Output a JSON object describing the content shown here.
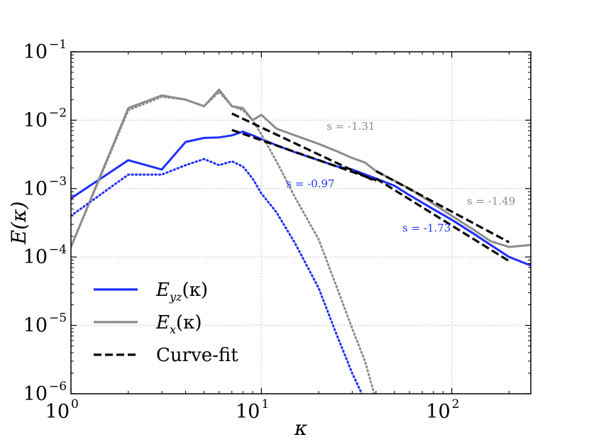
{
  "chart_data": {
    "type": "line",
    "xscale": "log",
    "yscale": "log",
    "xlim": [
      1,
      260
    ],
    "ylim": [
      1e-06,
      0.1
    ],
    "xlabel": "κ",
    "ylabel": "E(κ)",
    "x_ticks": [
      {
        "value": 1,
        "base": "10",
        "exp": "0"
      },
      {
        "value": 10,
        "base": "10",
        "exp": "1"
      },
      {
        "value": 100,
        "base": "10",
        "exp": "2"
      }
    ],
    "y_ticks": [
      {
        "value": 1e-06,
        "base": "10",
        "exp": "−6"
      },
      {
        "value": 1e-05,
        "base": "10",
        "exp": "−5"
      },
      {
        "value": 0.0001,
        "base": "10",
        "exp": "−4"
      },
      {
        "value": 0.001,
        "base": "10",
        "exp": "−3"
      },
      {
        "value": 0.01,
        "base": "10",
        "exp": "−2"
      },
      {
        "value": 0.1,
        "base": "10",
        "exp": "−1"
      }
    ],
    "grid": true,
    "colors": {
      "blue": "#1f2fff",
      "gray": "#8c8c8c",
      "black": "#000000"
    },
    "series": [
      {
        "name": "E_yz solid",
        "color": "#1f2fff",
        "style": "solid",
        "x": [
          1,
          2,
          3,
          4,
          5,
          6,
          7,
          8,
          9,
          10,
          12,
          15,
          20,
          25,
          30,
          40,
          50,
          60,
          80,
          100,
          130,
          160,
          200,
          260
        ],
        "y": [
          0.00072,
          0.0026,
          0.0019,
          0.0048,
          0.0055,
          0.0056,
          0.006,
          0.0068,
          0.006,
          0.0053,
          0.0043,
          0.0034,
          0.0026,
          0.0021,
          0.0019,
          0.0014,
          0.0011,
          0.0008,
          0.0005,
          0.00035,
          0.00022,
          0.00015,
          0.0001,
          7.5e-05
        ]
      },
      {
        "name": "E_x solid",
        "color": "#8c8c8c",
        "style": "solid",
        "x": [
          1,
          2,
          3,
          4,
          5,
          6,
          7,
          8,
          9,
          10,
          12,
          15,
          20,
          25,
          30,
          35,
          40,
          50,
          60,
          80,
          100,
          130,
          160,
          200,
          260
        ],
        "y": [
          0.00014,
          0.015,
          0.023,
          0.02,
          0.016,
          0.028,
          0.016,
          0.015,
          0.01,
          0.012,
          0.0075,
          0.006,
          0.0045,
          0.0035,
          0.0028,
          0.0024,
          0.0018,
          0.0013,
          0.001,
          0.0006,
          0.0004,
          0.00025,
          0.00017,
          0.00014,
          0.00015
        ]
      },
      {
        "name": "E_yz dotted",
        "color": "#1f2fff",
        "style": "dotted",
        "x": [
          1,
          2,
          3,
          4,
          5,
          6,
          7,
          8,
          9,
          10,
          12,
          15,
          20,
          25,
          30,
          35
        ],
        "y": [
          0.0004,
          0.0016,
          0.0016,
          0.0022,
          0.0027,
          0.0022,
          0.0025,
          0.0021,
          0.0014,
          0.00085,
          0.00045,
          0.00016,
          3.5e-05,
          7e-06,
          2e-06,
          8e-07
        ]
      },
      {
        "name": "E_x dotted",
        "color": "#8c8c8c",
        "style": "dotted",
        "x": [
          1,
          2,
          3,
          4,
          5,
          6,
          7,
          8,
          9,
          10,
          12,
          15,
          20,
          25,
          30,
          35,
          40
        ],
        "y": [
          0.00014,
          0.014,
          0.022,
          0.02,
          0.016,
          0.026,
          0.016,
          0.014,
          0.01,
          0.0062,
          0.0025,
          0.00075,
          0.00018,
          3.5e-05,
          9e-06,
          3e-06,
          8e-07
        ]
      },
      {
        "name": "fit s=-1.31",
        "color": "#000000",
        "style": "dashed",
        "x": [
          7,
          40
        ],
        "y": [
          0.0125,
          0.00127
        ]
      },
      {
        "name": "fit s=-0.97",
        "color": "#000000",
        "style": "dashed",
        "x": [
          7,
          40
        ],
        "y": [
          0.0072,
          0.00133
        ]
      },
      {
        "name": "fit s=-1.49",
        "color": "#000000",
        "style": "dashed",
        "x": [
          40,
          200
        ],
        "y": [
          0.0018,
          0.000164
        ]
      },
      {
        "name": "fit s=-1.73",
        "color": "#000000",
        "style": "dashed",
        "x": [
          40,
          200
        ],
        "y": [
          0.0014,
          8.7e-05
        ]
      }
    ],
    "annotations": [
      {
        "text": "s = -1.31",
        "color": "#8c8c8c",
        "x": 22,
        "y": 0.0072
      },
      {
        "text": "s = -0.97",
        "color": "#1f2fff",
        "x": 13.5,
        "y": 0.00105
      },
      {
        "text": "s = -1.49",
        "color": "#8c8c8c",
        "x": 120,
        "y": 0.00058
      },
      {
        "text": "s = -1.73",
        "color": "#1f2fff",
        "x": 55,
        "y": 0.000235
      }
    ],
    "legend": {
      "position": "bottom-left",
      "entries": [
        {
          "label": "E",
          "sub": "yz",
          "suffix": "(κ)",
          "color": "#1f2fff",
          "style": "solid"
        },
        {
          "label": "E",
          "sub": "x",
          "suffix": "(κ)",
          "color": "#8c8c8c",
          "style": "solid"
        },
        {
          "label": "Curve-fit",
          "color": "#000000",
          "style": "dashed"
        }
      ]
    }
  }
}
